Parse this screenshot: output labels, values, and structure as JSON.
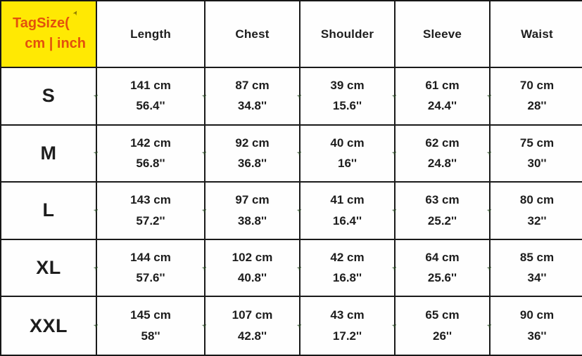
{
  "colors": {
    "corner_background": "#ffe903",
    "corner_text": "#e3500d",
    "grid_border": "#1a1a1a",
    "body_text": "#1d1d1d"
  },
  "chart_data": {
    "type": "table",
    "title": "TagSize( cm | inch",
    "corner": {
      "line1": "TagSize(",
      "line2": "cm | inch"
    },
    "columns": [
      "Length",
      "Chest",
      "Shoulder",
      "Sleeve",
      "Waist"
    ],
    "rows": [
      {
        "size": "S",
        "values": [
          {
            "cm": "141 cm",
            "inch": "56.4''"
          },
          {
            "cm": "87 cm",
            "inch": "34.8''"
          },
          {
            "cm": "39 cm",
            "inch": "15.6''"
          },
          {
            "cm": "61 cm",
            "inch": "24.4''"
          },
          {
            "cm": "70 cm",
            "inch": "28''"
          }
        ]
      },
      {
        "size": "M",
        "values": [
          {
            "cm": "142 cm",
            "inch": "56.8''"
          },
          {
            "cm": "92 cm",
            "inch": "36.8''"
          },
          {
            "cm": "40 cm",
            "inch": "16''"
          },
          {
            "cm": "62 cm",
            "inch": "24.8''"
          },
          {
            "cm": "75 cm",
            "inch": "30''"
          }
        ]
      },
      {
        "size": "L",
        "values": [
          {
            "cm": "143 cm",
            "inch": "57.2''"
          },
          {
            "cm": "97 cm",
            "inch": "38.8''"
          },
          {
            "cm": "41 cm",
            "inch": "16.4''"
          },
          {
            "cm": "63 cm",
            "inch": "25.2''"
          },
          {
            "cm": "80 cm",
            "inch": "32''"
          }
        ]
      },
      {
        "size": "XL",
        "values": [
          {
            "cm": "144 cm",
            "inch": "57.6''"
          },
          {
            "cm": "102 cm",
            "inch": "40.8''"
          },
          {
            "cm": "42 cm",
            "inch": "16.8''"
          },
          {
            "cm": "64 cm",
            "inch": "25.6''"
          },
          {
            "cm": "85 cm",
            "inch": "34''"
          }
        ]
      },
      {
        "size": "XXL",
        "values": [
          {
            "cm": "145 cm",
            "inch": "58''"
          },
          {
            "cm": "107 cm",
            "inch": "42.8''"
          },
          {
            "cm": "43 cm",
            "inch": "17.2''"
          },
          {
            "cm": "65 cm",
            "inch": "26''"
          },
          {
            "cm": "90 cm",
            "inch": "36''"
          }
        ]
      }
    ]
  }
}
